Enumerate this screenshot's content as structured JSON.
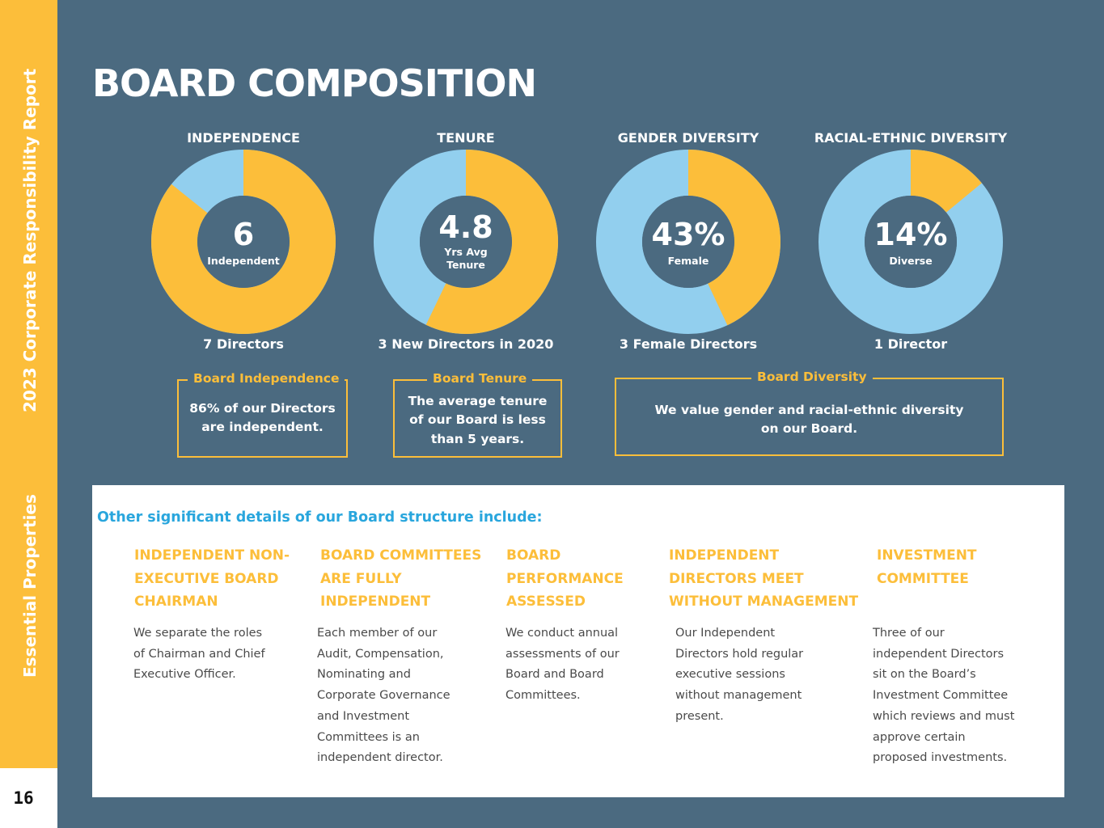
{
  "page": {
    "number": "16",
    "side_report": "2023 Corporate Responsibility Report",
    "side_company": "Essential Properties",
    "title": "BOARD COMPOSITION"
  },
  "colors": {
    "yellow": "#fcbe3a",
    "blue": "#92cfee",
    "navy": "#4b6a80",
    "intro": "#29a6dd"
  },
  "donuts": [
    {
      "label": "INDEPENDENCE",
      "center_value": "6",
      "center_text": "Independent",
      "sub": "7 Directors",
      "highlight_fraction": 0.857,
      "highlight_color": "yellow"
    },
    {
      "label": "TENURE",
      "center_value": "4.8",
      "center_text": "Yrs Avg\nTenure",
      "sub": "3 New Directors in 2020",
      "highlight_fraction": 0.571,
      "highlight_color": "yellow"
    },
    {
      "label": "GENDER DIVERSITY",
      "center_value": "43%",
      "center_text": "Female",
      "sub": "3 Female Directors",
      "highlight_fraction": 0.43,
      "highlight_color": "yellow"
    },
    {
      "label": "RACIAL-ETHNIC DIVERSITY",
      "center_value": "14%",
      "center_text": "Diverse",
      "sub": "1 Director",
      "highlight_fraction": 0.14,
      "highlight_color": "yellow"
    }
  ],
  "boxes": [
    {
      "title": "Board Independence",
      "body": "86% of our Directors\nare independent."
    },
    {
      "title": "Board Tenure",
      "body": "The average tenure\nof our Board is less\nthan 5 years."
    },
    {
      "title": "Board Diversity",
      "body": "We value gender and racial-ethnic diversity\non our Board."
    }
  ],
  "details": {
    "intro": "Other significant details of our Board structure include:",
    "columns": [
      {
        "heading": "INDEPENDENT NON-\nEXECUTIVE BOARD\nCHAIRMAN",
        "text": "We separate the roles\nof Chairman and Chief\nExecutive Officer."
      },
      {
        "heading": "BOARD COMMITTEES\nARE FULLY\nINDEPENDENT",
        "text": "Each member of our\nAudit, Compensation,\nNominating and\nCorporate Governance\nand Investment\nCommittees is an\nindependent director."
      },
      {
        "heading": "BOARD\nPERFORMANCE\nASSESSED",
        "text": "We conduct annual\nassessments of our\nBoard and Board\nCommittees."
      },
      {
        "heading": "INDEPENDENT\nDIRECTORS MEET\nWITHOUT MANAGEMENT",
        "text": "Our Independent\nDirectors hold regular\nexecutive sessions\nwithout management\npresent."
      },
      {
        "heading": "INVESTMENT\nCOMMITTEE",
        "text": "Three of our\nindependent Directors\nsit on the Board’s\nInvestment Committee\nwhich reviews and must\napprove certain\nproposed investments."
      }
    ]
  }
}
